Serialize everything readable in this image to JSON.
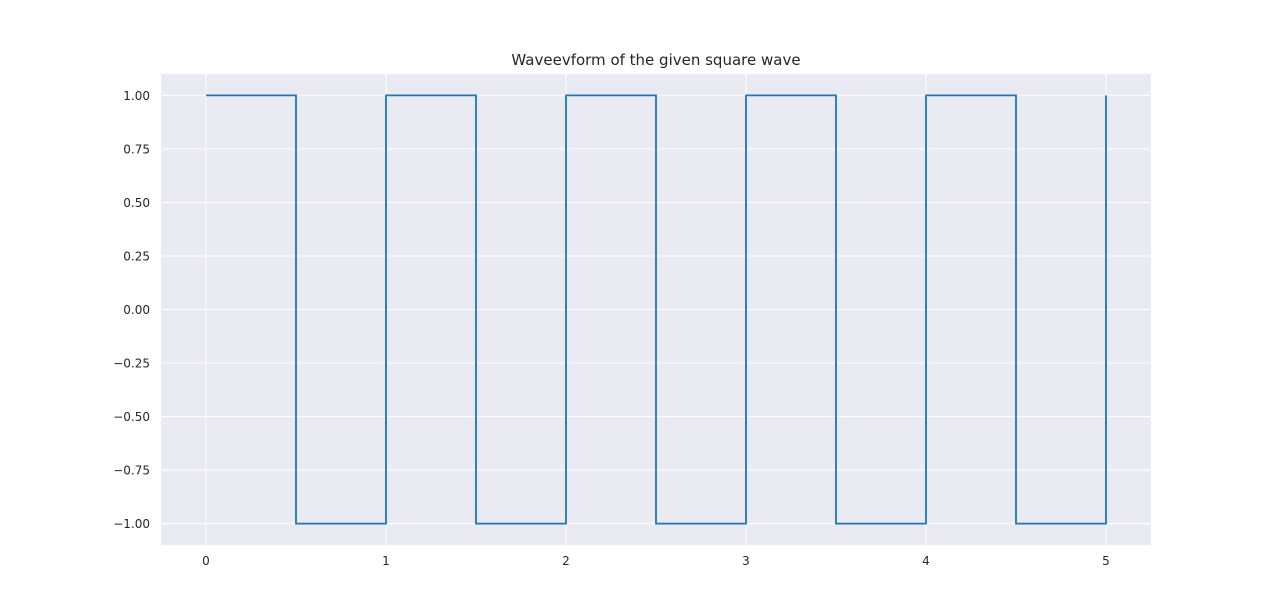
{
  "chart_data": {
    "type": "line",
    "title": "Waveevform of the given square wave",
    "xlabel": "",
    "ylabel": "",
    "xlim": [
      -0.25,
      5.25
    ],
    "ylim": [
      -1.1,
      1.1
    ],
    "x_ticks": [
      0,
      1,
      2,
      3,
      4,
      5
    ],
    "x_tick_labels": [
      "0",
      "1",
      "2",
      "3",
      "4",
      "5"
    ],
    "y_ticks": [
      1.0,
      0.75,
      0.5,
      0.25,
      0.0,
      -0.25,
      -0.5,
      -0.75,
      -1.0
    ],
    "y_tick_labels": [
      "1.00",
      "0.75",
      "0.50",
      "0.25",
      "0.00",
      "−0.25",
      "−0.50",
      "−0.75",
      "−1.00"
    ],
    "grid": true,
    "background_color": "#eaeaf2",
    "grid_color": "#ffffff",
    "series": [
      {
        "color": "#1f77b4",
        "x": [
          0,
          0.5,
          0.5,
          1,
          1,
          1.5,
          1.5,
          2,
          2,
          2.5,
          2.5,
          3,
          3,
          3.5,
          3.5,
          4,
          4,
          4.5,
          4.5,
          5,
          5
        ],
        "y": [
          1,
          1,
          -1,
          -1,
          1,
          1,
          -1,
          -1,
          1,
          1,
          -1,
          -1,
          1,
          1,
          -1,
          -1,
          1,
          1,
          -1,
          -1,
          1
        ]
      }
    ]
  }
}
